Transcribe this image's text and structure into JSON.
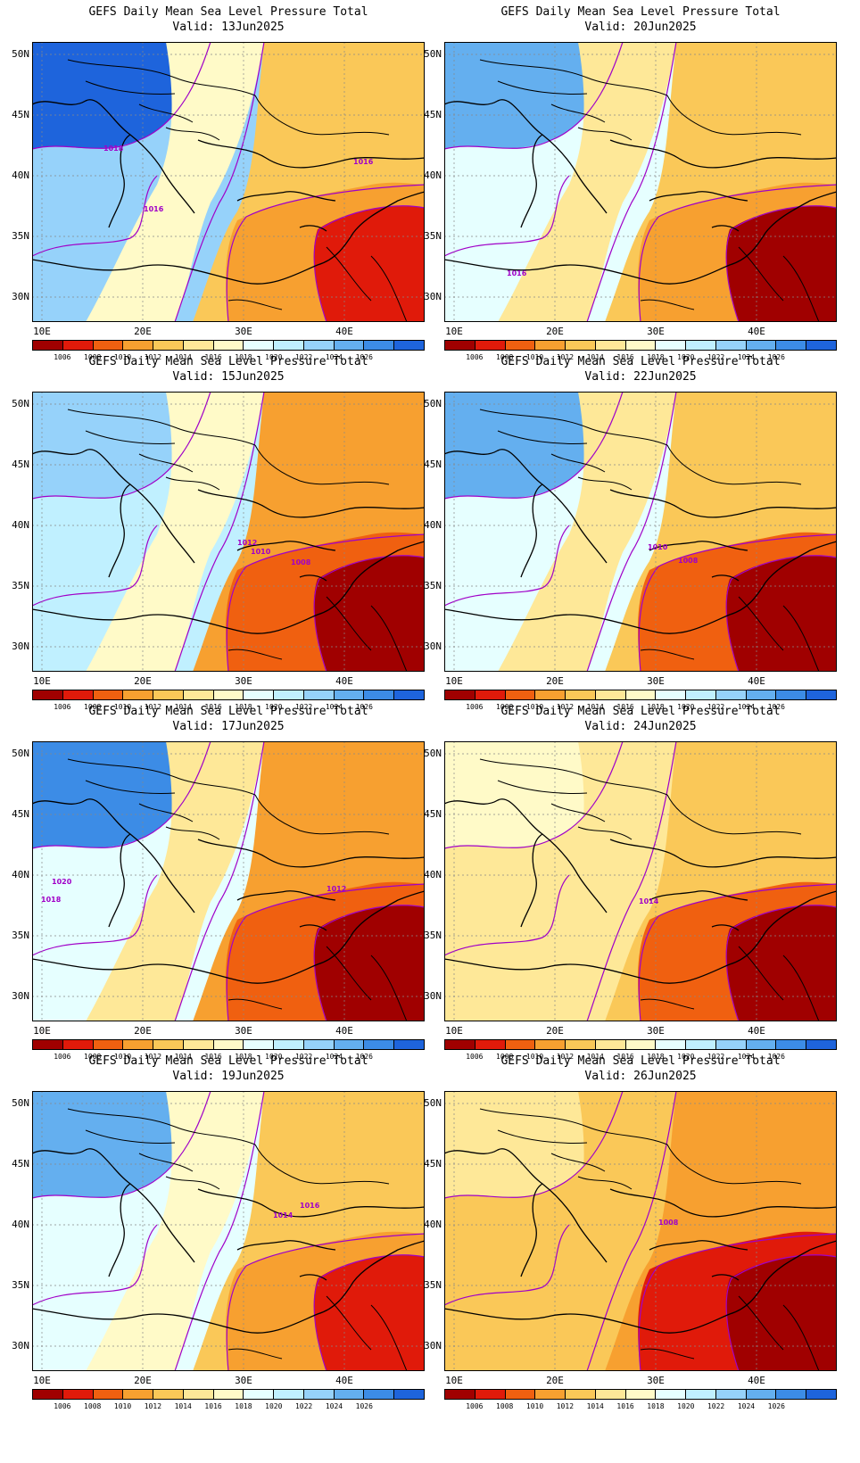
{
  "title": "GEFS Daily Mean Sea Level Pressure Total",
  "latitudes": [
    "50N",
    "45N",
    "40N",
    "35N",
    "30N"
  ],
  "longitudes": [
    "10E",
    "20E",
    "30E",
    "40E"
  ],
  "colorbar": {
    "ticks": [
      "1006",
      "1008",
      "1010",
      "1012",
      "1014",
      "1016",
      "1018",
      "1020",
      "1022",
      "1024",
      "1026"
    ],
    "colors": [
      "#a00000",
      "#e01a0a",
      "#f06010",
      "#f7a030",
      "#fac858",
      "#fee898",
      "#fffac8",
      "#e6ffff",
      "#c0f0ff",
      "#96d2fa",
      "#64afef",
      "#3c8ce6",
      "#1e64dc"
    ]
  },
  "panels": [
    {
      "valid": "Valid: 13Jun2025",
      "labels": [
        "1018",
        "1016",
        "1016"
      ]
    },
    {
      "valid": "Valid: 20Jun2025",
      "labels": [
        "1016"
      ]
    },
    {
      "valid": "Valid: 15Jun2025",
      "labels": [
        "1012",
        "1010",
        "1008"
      ]
    },
    {
      "valid": "Valid: 22Jun2025",
      "labels": [
        "1010",
        "1008"
      ]
    },
    {
      "valid": "Valid: 17Jun2025",
      "labels": [
        "1020",
        "1018",
        "1012"
      ]
    },
    {
      "valid": "Valid: 24Jun2025",
      "labels": [
        "1014"
      ]
    },
    {
      "valid": "Valid: 19Jun2025",
      "labels": [
        "1016",
        "1014"
      ]
    },
    {
      "valid": "Valid: 26Jun2025",
      "labels": [
        "1008"
      ]
    }
  ]
}
